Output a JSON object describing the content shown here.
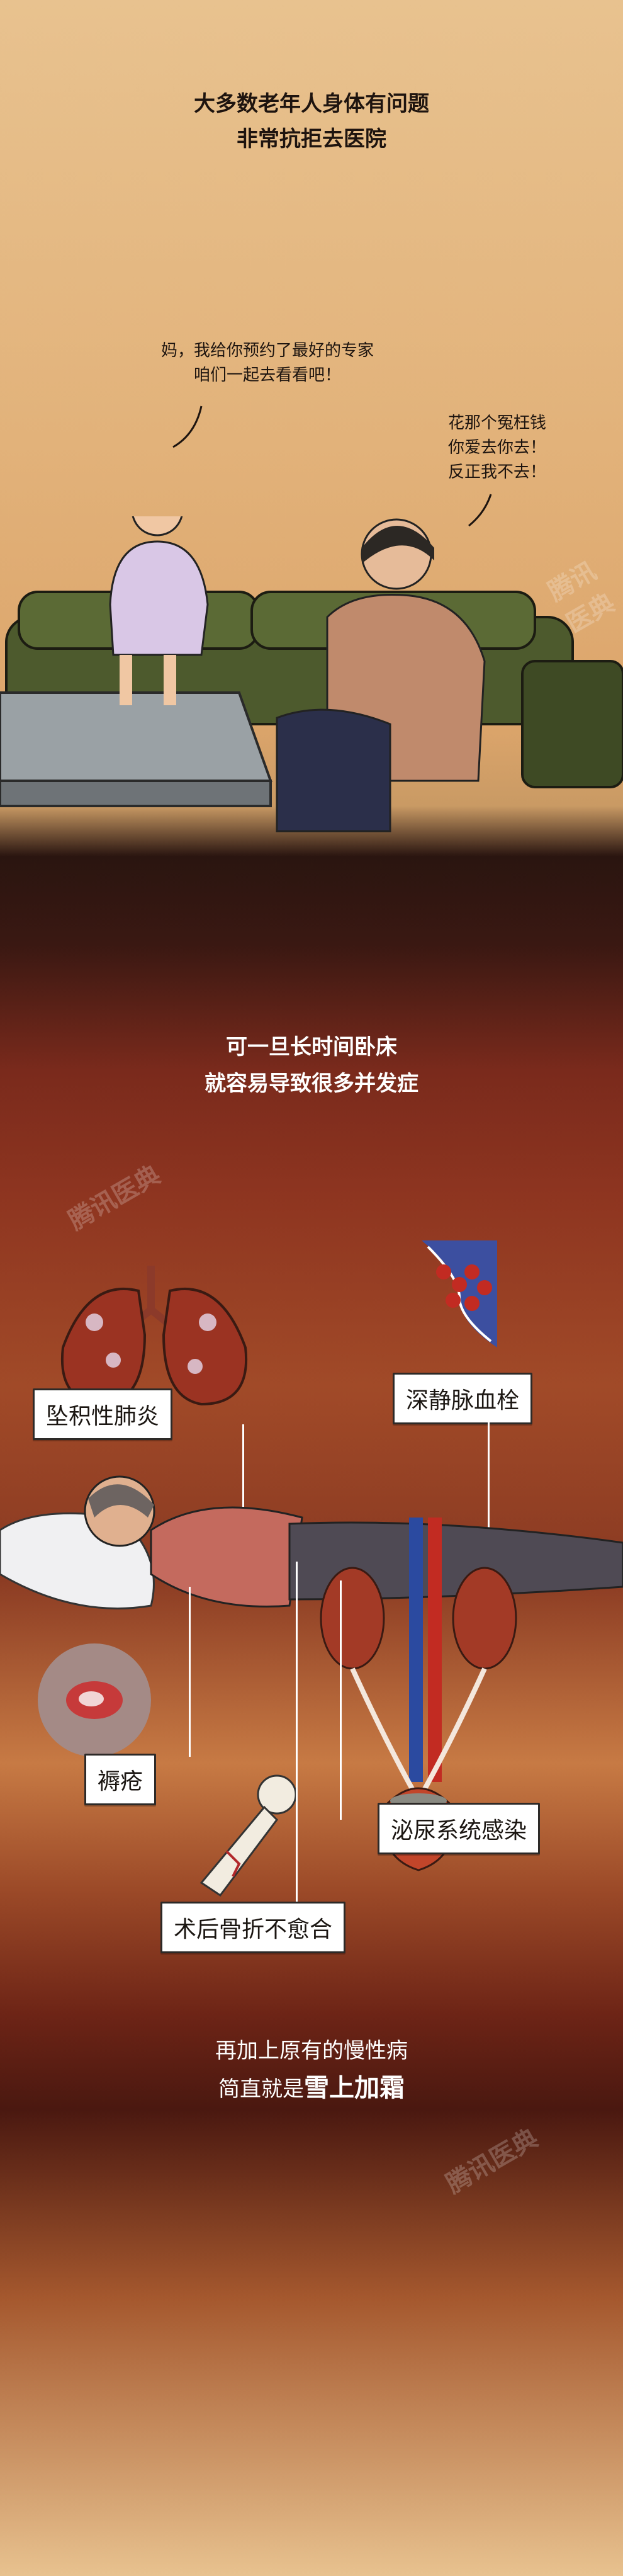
{
  "panel1": {
    "title_line1": "大多数老年人身体有问题",
    "title_line2": "非常抗拒去医院",
    "daughter_speech_line1": "妈，我给你预约了最好的专家",
    "daughter_speech_line2": "咱们一起去看看吧！",
    "mother_speech_line1": "花那个冤枉钱",
    "mother_speech_line2": "你爱去你去！",
    "mother_speech_line3": "反正我不去！"
  },
  "panel2": {
    "title_line1": "可一旦长时间卧床",
    "title_line2": "就容易导致很多并发症",
    "labels": {
      "pneumonia": "坠积性肺炎",
      "thrombosis": "深静脉血栓",
      "bedsore": "褥疮",
      "uti": "泌尿系统感染",
      "fracture": "术后骨折不愈合"
    },
    "bottom_line1": "再加上原有的慢性病",
    "bottom_line2_prefix": "简直就是",
    "bottom_line2_emphasis": "雪上加霜"
  },
  "watermark": "腾讯医典",
  "colors": {
    "top_bg": "#e2b27a",
    "dark_band": "#2a1510",
    "red_bg": "#8e3520",
    "sofa_green": "#4d5a2d",
    "label_border": "#2d2a28"
  }
}
